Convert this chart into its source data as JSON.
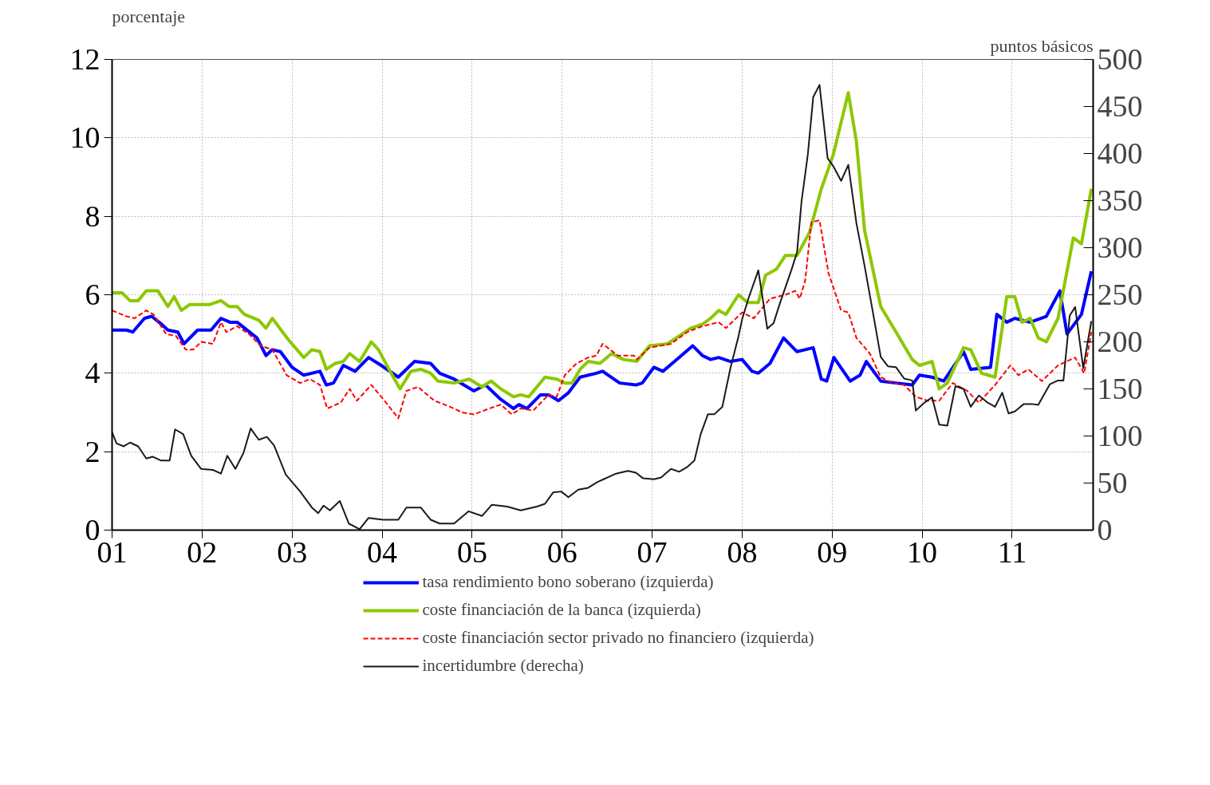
{
  "chart_data": {
    "type": "line",
    "ylabel": "porcentaje",
    "y2label": "puntos básicos",
    "xlim": [
      1,
      11.9
    ],
    "xticks": [
      {
        "value": 1,
        "label": "01"
      },
      {
        "value": 2,
        "label": "02"
      },
      {
        "value": 3,
        "label": "03"
      },
      {
        "value": 4,
        "label": "04"
      },
      {
        "value": 5,
        "label": "05"
      },
      {
        "value": 6,
        "label": "06"
      },
      {
        "value": 7,
        "label": "07"
      },
      {
        "value": 8,
        "label": "08"
      },
      {
        "value": 9,
        "label": "09"
      },
      {
        "value": 10,
        "label": "10"
      },
      {
        "value": 11,
        "label": "11"
      }
    ],
    "ylim": [
      0,
      12
    ],
    "yticks": [
      0,
      2,
      4,
      6,
      8,
      10,
      12
    ],
    "y2lim": [
      0,
      500
    ],
    "y2ticks": [
      0,
      50,
      100,
      150,
      200,
      250,
      300,
      350,
      400,
      450,
      500
    ],
    "grid": true,
    "legend": "bottom",
    "series": [
      {
        "name": "tasa rendimiento bono soberano (izquierda)",
        "color": "#0000ff",
        "x": [
          1.0,
          1.16,
          1.23,
          1.36,
          1.44,
          1.55,
          1.62,
          1.73,
          1.8,
          1.95,
          2.1,
          2.21,
          2.31,
          2.39,
          2.61,
          2.71,
          2.78,
          2.87,
          3.0,
          3.13,
          3.31,
          3.38,
          3.46,
          3.57,
          3.7,
          3.85,
          3.99,
          4.18,
          4.36,
          4.54,
          4.64,
          4.8,
          5.02,
          5.15,
          5.31,
          5.46,
          5.52,
          5.61,
          5.76,
          5.85,
          5.96,
          6.07,
          6.2,
          6.38,
          6.45,
          6.64,
          6.82,
          6.89,
          7.02,
          7.12,
          7.25,
          7.45,
          7.56,
          7.65,
          7.74,
          7.87,
          8.0,
          8.11,
          8.18,
          8.31,
          8.46,
          8.61,
          8.79,
          8.88,
          8.94,
          9.02,
          9.2,
          9.31,
          9.38,
          9.54,
          9.71,
          9.89,
          9.97,
          10.11,
          10.24,
          10.46,
          10.54,
          10.76,
          10.83,
          10.94,
          11.03,
          11.2,
          11.38,
          11.53,
          11.61,
          11.77,
          11.88
        ],
        "values": [
          5.1,
          5.1,
          5.05,
          5.4,
          5.45,
          5.25,
          5.1,
          5.05,
          4.75,
          5.1,
          5.1,
          5.4,
          5.3,
          5.3,
          4.9,
          4.45,
          4.6,
          4.55,
          4.15,
          3.95,
          4.05,
          3.7,
          3.75,
          4.2,
          4.05,
          4.4,
          4.2,
          3.9,
          4.3,
          4.25,
          4.0,
          3.85,
          3.55,
          3.7,
          3.35,
          3.1,
          3.2,
          3.1,
          3.45,
          3.45,
          3.3,
          3.5,
          3.9,
          4.0,
          4.05,
          3.75,
          3.7,
          3.75,
          4.15,
          4.05,
          4.3,
          4.7,
          4.45,
          4.35,
          4.4,
          4.3,
          4.35,
          4.05,
          4.0,
          4.25,
          4.9,
          4.55,
          4.65,
          3.85,
          3.8,
          4.4,
          3.8,
          3.95,
          4.3,
          3.8,
          3.75,
          3.7,
          3.95,
          3.9,
          3.8,
          4.55,
          4.1,
          4.15,
          5.5,
          5.3,
          5.4,
          5.3,
          5.45,
          6.1,
          5.0,
          5.5,
          6.6
        ]
      },
      {
        "name": "coste financiación de la banca (izquierda)",
        "color": "#8cc800",
        "x": [
          1.0,
          1.11,
          1.2,
          1.29,
          1.38,
          1.51,
          1.62,
          1.69,
          1.77,
          1.86,
          2.08,
          2.21,
          2.3,
          2.39,
          2.47,
          2.63,
          2.71,
          2.78,
          2.96,
          3.13,
          3.22,
          3.31,
          3.38,
          3.48,
          3.57,
          3.64,
          3.75,
          3.88,
          3.96,
          4.1,
          4.2,
          4.32,
          4.43,
          4.54,
          4.62,
          4.8,
          4.97,
          5.11,
          5.21,
          5.32,
          5.46,
          5.54,
          5.63,
          5.81,
          5.94,
          6.03,
          6.11,
          6.2,
          6.29,
          6.42,
          6.55,
          6.68,
          6.83,
          6.97,
          7.17,
          7.43,
          7.56,
          7.65,
          7.74,
          7.82,
          7.96,
          8.06,
          8.18,
          8.26,
          8.38,
          8.48,
          8.61,
          8.75,
          8.88,
          9.01,
          9.18,
          9.27,
          9.36,
          9.54,
          9.71,
          9.89,
          9.97,
          10.11,
          10.19,
          10.28,
          10.46,
          10.54,
          10.66,
          10.81,
          10.94,
          11.03,
          11.11,
          11.2,
          11.29,
          11.38,
          11.51,
          11.68,
          11.77,
          11.88
        ],
        "values": [
          6.05,
          6.05,
          5.85,
          5.85,
          6.1,
          6.1,
          5.7,
          5.95,
          5.6,
          5.75,
          5.75,
          5.85,
          5.7,
          5.7,
          5.5,
          5.35,
          5.15,
          5.4,
          4.85,
          4.4,
          4.6,
          4.55,
          4.1,
          4.25,
          4.3,
          4.5,
          4.3,
          4.8,
          4.6,
          4.0,
          3.6,
          4.05,
          4.1,
          4.0,
          3.8,
          3.75,
          3.85,
          3.65,
          3.8,
          3.6,
          3.4,
          3.45,
          3.4,
          3.9,
          3.85,
          3.75,
          3.75,
          4.1,
          4.3,
          4.25,
          4.5,
          4.35,
          4.3,
          4.7,
          4.75,
          5.15,
          5.25,
          5.4,
          5.6,
          5.5,
          6.0,
          5.8,
          5.8,
          6.5,
          6.65,
          7.0,
          7.0,
          7.6,
          8.7,
          9.55,
          11.15,
          9.9,
          7.65,
          5.7,
          5.05,
          4.35,
          4.2,
          4.3,
          3.6,
          3.75,
          4.65,
          4.6,
          4.0,
          3.9,
          5.95,
          5.95,
          5.3,
          5.4,
          4.9,
          4.8,
          5.4,
          7.45,
          7.3,
          8.7
        ]
      },
      {
        "name": "coste financiación sector privado no financiero (izquierda)",
        "color": "#ff0000",
        "line_style": "dashed",
        "x": [
          1.0,
          1.16,
          1.25,
          1.38,
          1.46,
          1.6,
          1.71,
          1.82,
          1.9,
          1.99,
          2.12,
          2.21,
          2.27,
          2.39,
          2.52,
          2.65,
          2.78,
          2.94,
          3.09,
          3.2,
          3.31,
          3.39,
          3.54,
          3.64,
          3.72,
          3.88,
          4.01,
          4.18,
          4.27,
          4.4,
          4.58,
          4.75,
          4.89,
          5.02,
          5.19,
          5.32,
          5.44,
          5.54,
          5.68,
          5.85,
          5.94,
          6.03,
          6.16,
          6.29,
          6.38,
          6.45,
          6.62,
          6.8,
          6.83,
          6.97,
          7.21,
          7.39,
          7.56,
          7.74,
          7.82,
          8.0,
          8.13,
          8.31,
          8.48,
          8.59,
          8.64,
          8.7,
          8.77,
          8.86,
          8.96,
          9.1,
          9.18,
          9.27,
          9.42,
          9.54,
          9.67,
          9.8,
          9.93,
          10.06,
          10.19,
          10.34,
          10.5,
          10.63,
          10.81,
          10.98,
          11.07,
          11.18,
          11.33,
          11.51,
          11.7,
          11.8,
          11.88
        ],
        "values": [
          5.6,
          5.45,
          5.4,
          5.6,
          5.5,
          5.0,
          4.95,
          4.6,
          4.6,
          4.8,
          4.75,
          5.3,
          5.05,
          5.2,
          5.0,
          4.7,
          4.6,
          3.95,
          3.75,
          3.85,
          3.7,
          3.1,
          3.25,
          3.6,
          3.3,
          3.7,
          3.35,
          2.85,
          3.55,
          3.65,
          3.3,
          3.15,
          3.0,
          2.95,
          3.1,
          3.2,
          2.95,
          3.1,
          3.05,
          3.45,
          3.4,
          3.95,
          4.25,
          4.4,
          4.45,
          4.75,
          4.45,
          4.45,
          4.35,
          4.65,
          4.75,
          5.05,
          5.2,
          5.3,
          5.15,
          5.55,
          5.4,
          5.9,
          6.0,
          6.1,
          5.9,
          6.35,
          7.85,
          7.9,
          6.55,
          5.6,
          5.55,
          4.9,
          4.5,
          3.9,
          3.75,
          3.7,
          3.4,
          3.3,
          3.3,
          3.75,
          3.55,
          3.25,
          3.7,
          4.2,
          3.95,
          4.1,
          3.8,
          4.2,
          4.4,
          4.0,
          5.05
        ]
      },
      {
        "name": "incertidumbre (derecha)",
        "color": "#1a1a1a",
        "axis": "y2",
        "x": [
          1.0,
          1.05,
          1.13,
          1.2,
          1.29,
          1.38,
          1.45,
          1.54,
          1.64,
          1.7,
          1.79,
          1.88,
          1.99,
          2.12,
          2.21,
          2.28,
          2.37,
          2.46,
          2.54,
          2.63,
          2.72,
          2.8,
          2.93,
          3.09,
          3.22,
          3.29,
          3.35,
          3.42,
          3.53,
          3.63,
          3.75,
          3.85,
          4.01,
          4.18,
          4.27,
          4.43,
          4.54,
          4.64,
          4.8,
          4.96,
          5.11,
          5.22,
          5.39,
          5.54,
          5.72,
          5.81,
          5.9,
          5.99,
          6.07,
          6.18,
          6.29,
          6.39,
          6.46,
          6.6,
          6.73,
          6.82,
          6.9,
          7.02,
          7.1,
          7.21,
          7.3,
          7.39,
          7.47,
          7.54,
          7.62,
          7.69,
          7.78,
          7.87,
          7.96,
          8.0,
          8.07,
          8.18,
          8.28,
          8.35,
          8.42,
          8.55,
          8.61,
          8.66,
          8.73,
          8.79,
          8.86,
          8.95,
          9.01,
          9.1,
          9.18,
          9.27,
          9.36,
          9.45,
          9.54,
          9.62,
          9.71,
          9.8,
          9.89,
          9.93,
          10.02,
          10.11,
          10.19,
          10.28,
          10.37,
          10.46,
          10.54,
          10.63,
          10.72,
          10.81,
          10.89,
          10.96,
          11.03,
          11.13,
          11.22,
          11.29,
          11.42,
          11.51,
          11.57,
          11.64,
          11.7,
          11.79,
          11.88
        ],
        "values": [
          104,
          92,
          89,
          93,
          89,
          76,
          78,
          74,
          74,
          107,
          102,
          79,
          65,
          64,
          60,
          79,
          65,
          82,
          108,
          96,
          99,
          90,
          59,
          41,
          24,
          18,
          26,
          21,
          31,
          7,
          1,
          13,
          11,
          11,
          24,
          24,
          11,
          7,
          7,
          20,
          15,
          27,
          25,
          21,
          25,
          28,
          40,
          41,
          35,
          43,
          45,
          51,
          54,
          60,
          63,
          61,
          55,
          54,
          56,
          65,
          62,
          67,
          74,
          102,
          123,
          123,
          131,
          172,
          206,
          224,
          246,
          276,
          214,
          220,
          241,
          277,
          295,
          349,
          399,
          460,
          473,
          395,
          387,
          371,
          388,
          326,
          281,
          233,
          184,
          174,
          173,
          161,
          159,
          127,
          135,
          141,
          112,
          111,
          153,
          150,
          131,
          143,
          136,
          131,
          146,
          124,
          126,
          134,
          134,
          133,
          155,
          159,
          159,
          228,
          237,
          172,
          222
        ]
      }
    ]
  }
}
